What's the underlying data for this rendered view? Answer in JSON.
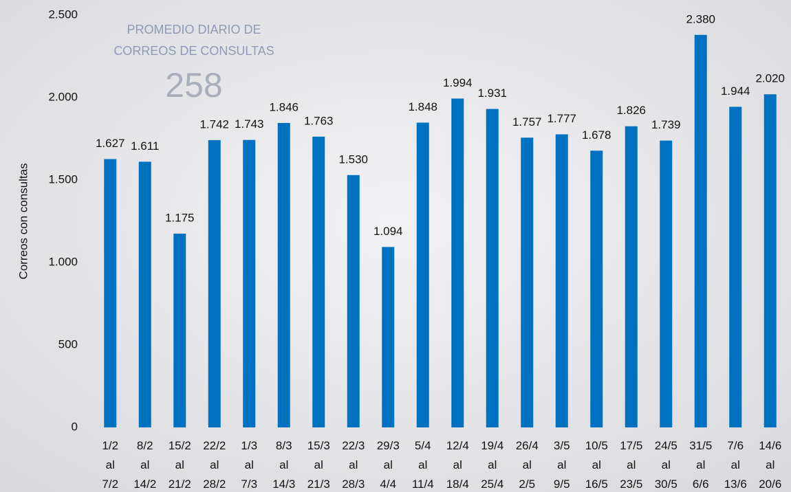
{
  "chart_data": {
    "type": "bar",
    "y_label": "Correos con consultas",
    "annotation": {
      "lines": [
        "PROMEDIO DIARIO DE",
        "CORREOS DE CONSULTAS"
      ],
      "value": 258
    },
    "categories": [
      [
        "1/2",
        "al",
        "7/2"
      ],
      [
        "8/2",
        "al",
        "14/2"
      ],
      [
        "15/2",
        "al",
        "21/2"
      ],
      [
        "22/2",
        "al",
        "28/2"
      ],
      [
        "1/3",
        "al",
        "7/3"
      ],
      [
        "8/3",
        "al",
        "14/3"
      ],
      [
        "15/3",
        "al",
        "21/3"
      ],
      [
        "22/3",
        "al",
        "28/3"
      ],
      [
        "29/3",
        "al",
        "4/4"
      ],
      [
        "5/4",
        "al",
        "11/4"
      ],
      [
        "12/4",
        "al",
        "18/4"
      ],
      [
        "19/4",
        "al",
        "25/4"
      ],
      [
        "26/4",
        "al",
        "2/5"
      ],
      [
        "3/5",
        "al",
        "9/5"
      ],
      [
        "10/5",
        "al",
        "16/5"
      ],
      [
        "17/5",
        "al",
        "23/5"
      ],
      [
        "24/5",
        "al",
        "30/5"
      ],
      [
        "31/5",
        "al",
        "6/6"
      ],
      [
        "7/6",
        "al",
        "13/6"
      ],
      [
        "14/6",
        "al",
        "20/6"
      ]
    ],
    "values": [
      1627,
      1611,
      1175,
      1742,
      1743,
      1846,
      1763,
      1530,
      1094,
      1848,
      1994,
      1931,
      1757,
      1777,
      1678,
      1826,
      1739,
      2380,
      1944,
      2020
    ],
    "value_labels": [
      "1.627",
      "1.611",
      "1.175",
      "1.742",
      "1.743",
      "1.846",
      "1.763",
      "1.530",
      "1.094",
      "1.848",
      "1.994",
      "1.931",
      "1.757",
      "1.777",
      "1.678",
      "1.826",
      "1.739",
      "2.380",
      "1.944",
      "2.020"
    ],
    "color": "#0070c0",
    "ylim": [
      0,
      2500
    ],
    "yticks": [
      0,
      500,
      {
        "value": 1000,
        "label": "1.000"
      },
      {
        "value": 1500,
        "label": "1.500"
      },
      {
        "value": 2000,
        "label": "2.000"
      },
      {
        "value": 2500,
        "label": "2.500"
      }
    ],
    "grid": false
  }
}
